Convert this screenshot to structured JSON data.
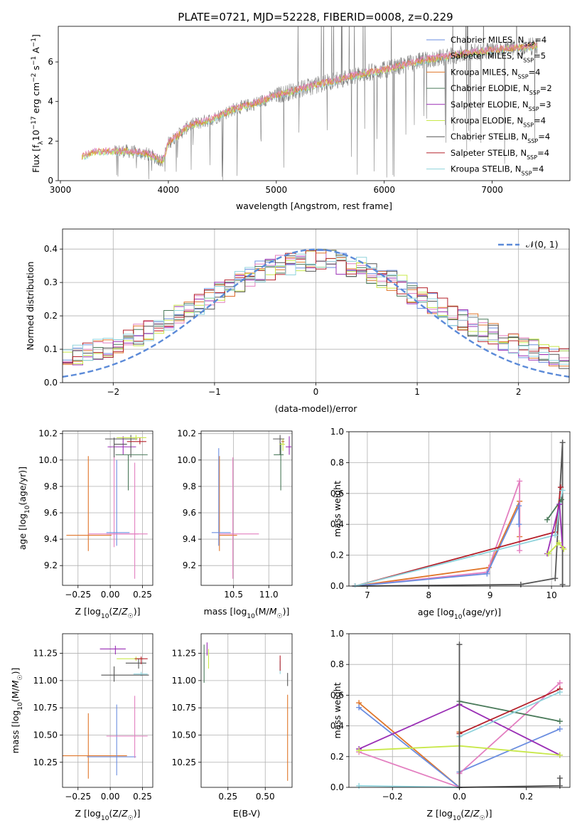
{
  "figure": {
    "title": "PLATE=0721, MJD=52228, FIBERID=0008, z=0.229"
  },
  "colors": {
    "chabrier_miles": "#6a8de0",
    "salpeter_miles": "#e37fc0",
    "kroupa_miles": "#e0762a",
    "chabrier_elodie": "#4a7a5a",
    "salpeter_elodie": "#9a2fb5",
    "kroupa_elodie": "#c8e84a",
    "chabrier_stelib": "#555555",
    "salpeter_stelib": "#b5202a",
    "kroupa_stelib": "#8fd3dc",
    "data_line": "#808080",
    "normal_curve": "#5b8ad8",
    "grid": "#b0b0b0"
  },
  "chart_data": [
    {
      "id": "spectrum",
      "type": "line",
      "xlabel": "wavelength [Angstrom, rest frame]",
      "ylabel": "Flux [f_λ10^-17 erg cm^-2 s^-1 A^-1]",
      "xlim": [
        2980,
        7720
      ],
      "ylim": [
        0,
        7.8
      ],
      "xticks": [
        3000,
        4000,
        5000,
        6000,
        7000
      ],
      "yticks": [
        0,
        2,
        4,
        6
      ],
      "grid": false,
      "legend_position": "upper-right",
      "legend": [
        {
          "base": "Chabrier MILES, N",
          "sub": "SSP",
          "tail": "=4",
          "color": "chabrier_miles"
        },
        {
          "base": "Salpeter MILES, N",
          "sub": "SSP",
          "tail": "=5",
          "color": "salpeter_miles"
        },
        {
          "base": "Kroupa MILES, N",
          "sub": "SSP",
          "tail": "=4",
          "color": "kroupa_miles"
        },
        {
          "base": "Chabrier ELODIE, N",
          "sub": "SSP",
          "tail": "=2",
          "color": "chabrier_elodie"
        },
        {
          "base": "Salpeter ELODIE, N",
          "sub": "SSP",
          "tail": "=3",
          "color": "salpeter_elodie"
        },
        {
          "base": "Kroupa ELODIE, N",
          "sub": "SSP",
          "tail": "=4",
          "color": "kroupa_elodie"
        },
        {
          "base": "Chabrier STELIB, N",
          "sub": "SSP",
          "tail": "=4",
          "color": "chabrier_stelib"
        },
        {
          "base": "Salpeter STELIB, N",
          "sub": "SSP",
          "tail": "=4",
          "color": "salpeter_stelib"
        },
        {
          "base": "Kroupa STELIB, N",
          "sub": "SSP",
          "tail": "=4",
          "color": "kroupa_stelib"
        }
      ],
      "continuum": [
        [
          3200,
          1.2
        ],
        [
          3300,
          1.45
        ],
        [
          3600,
          1.5
        ],
        [
          3800,
          1.35
        ],
        [
          3950,
          1.0
        ],
        [
          4000,
          1.9
        ],
        [
          4200,
          2.8
        ],
        [
          4400,
          3.1
        ],
        [
          4600,
          3.6
        ],
        [
          4800,
          3.9
        ],
        [
          5000,
          4.3
        ],
        [
          5200,
          4.6
        ],
        [
          5500,
          5.0
        ],
        [
          5800,
          5.4
        ],
        [
          6000,
          5.6
        ],
        [
          6300,
          6.0
        ],
        [
          6600,
          6.3
        ],
        [
          7000,
          6.6
        ],
        [
          7400,
          6.8
        ]
      ]
    },
    {
      "id": "residuals",
      "type": "line",
      "xlabel": "(data-model)/error",
      "ylabel": "Normed distribution",
      "xlim": [
        -2.5,
        2.5
      ],
      "ylim": [
        0,
        0.46
      ],
      "xticks": [
        -2,
        -1,
        0,
        1,
        2
      ],
      "yticks": [
        0.0,
        0.1,
        0.2,
        0.3,
        0.4
      ],
      "grid": true,
      "legend_position": "upper-right",
      "legend_label": "𝒩(0, 1)",
      "histogram_bin_width": 0.1,
      "normal_mean": 0,
      "normal_sigma": 1
    },
    {
      "id": "age_vs_Z",
      "type": "scatter",
      "xlabel": "Z [log10(Z/Z☉)]",
      "ylabel": "age  [log10(age/yr)]",
      "xlim": [
        -0.37,
        0.33
      ],
      "ylim": [
        9.05,
        10.22
      ],
      "xticks": [
        -0.25,
        0.0,
        0.25
      ],
      "yticks": [
        9.2,
        9.4,
        9.6,
        9.8,
        10.0,
        10.2
      ],
      "points": [
        {
          "x": -0.17,
          "y": 9.43,
          "xerr": [
            0.17,
            0.18
          ],
          "yerr": [
            0.12,
            0.6
          ],
          "color": "kroupa_miles"
        },
        {
          "x": 0.03,
          "y": 9.44,
          "xerr": [
            0.2,
            0.19
          ],
          "yerr": [
            0.1,
            0.59
          ],
          "color": "salpeter_miles"
        },
        {
          "x": 0.05,
          "y": 9.45,
          "xerr": [
            0.08,
            0.1
          ],
          "yerr": [
            0.1,
            0.55
          ],
          "color": "chabrier_miles"
        },
        {
          "x": 0.19,
          "y": 9.44,
          "xerr": [
            0.22,
            0.1
          ],
          "yerr": [
            0.34,
            0.54
          ],
          "color": "salpeter_miles"
        },
        {
          "x": 0.1,
          "y": 10.1,
          "xerr": [
            0.12,
            0.1
          ],
          "yerr": [
            0.06,
            0.08
          ],
          "color": "salpeter_elodie"
        },
        {
          "x": 0.16,
          "y": 10.16,
          "xerr": [
            0.2,
            0.05
          ],
          "yerr": [
            0.14,
            0.03
          ],
          "color": "chabrier_stelib"
        },
        {
          "x": 0.23,
          "y": 10.14,
          "xerr": [
            0.1,
            0.05
          ],
          "yerr": [
            0.02,
            0.03
          ],
          "color": "salpeter_stelib"
        },
        {
          "x": 0.2,
          "y": 10.17,
          "xerr": [
            0.15,
            0.08
          ],
          "yerr": [
            0.02,
            0.02
          ],
          "color": "kroupa_elodie"
        },
        {
          "x": 0.14,
          "y": 10.04,
          "xerr": [
            0.1,
            0.15
          ],
          "yerr": [
            0.27,
            0.0
          ],
          "color": "chabrier_elodie"
        },
        {
          "x": 0.03,
          "y": 10.12,
          "xerr": [
            0.0,
            0.1
          ],
          "yerr": [
            0.1,
            0.05
          ],
          "color": "chabrier_stelib"
        }
      ]
    },
    {
      "id": "age_vs_mass",
      "type": "scatter",
      "xlabel": "mass [log10(M/M☉)]",
      "ylabel": "",
      "xlim": [
        10.04,
        11.33
      ],
      "ylim": [
        9.05,
        10.22
      ],
      "xticks": [
        10.5,
        11.0
      ],
      "yticks": [
        9.2,
        9.4,
        9.6,
        9.8,
        10.0,
        10.2
      ],
      "points": [
        {
          "x": 10.3,
          "y": 9.43,
          "xerr": [
            0.0,
            0.25
          ],
          "yerr": [
            0.12,
            0.6
          ],
          "color": "kroupa_miles"
        },
        {
          "x": 10.49,
          "y": 9.44,
          "xerr": [
            0.2,
            0.37
          ],
          "yerr": [
            0.34,
            0.58
          ],
          "color": "salpeter_miles"
        },
        {
          "x": 10.29,
          "y": 9.45,
          "xerr": [
            0.1,
            0.17
          ],
          "yerr": [
            0.1,
            0.64
          ],
          "color": "chabrier_miles"
        },
        {
          "x": 11.16,
          "y": 10.16,
          "xerr": [
            0.1,
            0.06
          ],
          "yerr": [
            0.12,
            0.03
          ],
          "color": "chabrier_stelib"
        },
        {
          "x": 11.17,
          "y": 10.04,
          "xerr": [
            0.1,
            0.04
          ],
          "yerr": [
            0.27,
            0.09
          ],
          "color": "chabrier_elodie"
        },
        {
          "x": 11.2,
          "y": 10.14,
          "xerr": [
            0.02,
            0.02
          ],
          "yerr": [
            0.02,
            0.02
          ],
          "color": "salpeter_stelib"
        },
        {
          "x": 11.29,
          "y": 10.1,
          "xerr": [
            0.05,
            0.03
          ],
          "yerr": [
            0.06,
            0.08
          ],
          "color": "salpeter_elodie"
        },
        {
          "x": 11.2,
          "y": 10.12,
          "xerr": [
            0.05,
            0.03
          ],
          "yerr": [
            0.05,
            0.04
          ],
          "color": "kroupa_elodie"
        }
      ]
    },
    {
      "id": "mass_weight_vs_age",
      "type": "line",
      "xlabel": "age  [log10(age/yr)]",
      "ylabel": "mass weight",
      "xlim": [
        6.7,
        10.3
      ],
      "ylim": [
        0,
        1
      ],
      "xticks": [
        7,
        8,
        9,
        10
      ],
      "yticks": [
        0.0,
        0.2,
        0.4,
        0.6,
        0.8,
        1.0
      ],
      "grid": true,
      "series": [
        {
          "color": "kroupa_miles",
          "x": [
            6.8,
            8.98,
            9.48,
            9.48
          ],
          "y": [
            0.0,
            0.12,
            0.55,
            0.32
          ]
        },
        {
          "color": "salpeter_miles",
          "x": [
            6.8,
            8.95,
            9.48,
            9.48
          ],
          "y": [
            0.0,
            0.09,
            0.68,
            0.23
          ]
        },
        {
          "color": "chabrier_miles",
          "x": [
            6.8,
            8.95,
            9.47,
            9.47
          ],
          "y": [
            0.0,
            0.08,
            0.52,
            0.4
          ]
        },
        {
          "color": "chabrier_stelib",
          "x": [
            6.8,
            9.5,
            10.06,
            10.18,
            10.18
          ],
          "y": [
            0.0,
            0.01,
            0.05,
            0.93,
            0.01
          ]
        },
        {
          "color": "salpeter_stelib",
          "x": [
            6.8,
            10.06,
            10.15
          ],
          "y": [
            0.0,
            0.35,
            0.64
          ]
        },
        {
          "color": "kroupa_stelib",
          "x": [
            6.8,
            10.06,
            10.18
          ],
          "y": [
            0.0,
            0.33,
            0.62
          ]
        },
        {
          "color": "chabrier_elodie",
          "x": [
            9.93,
            10.16
          ],
          "y": [
            0.43,
            0.56
          ]
        },
        {
          "color": "salpeter_elodie",
          "x": [
            9.93,
            10.13,
            10.18
          ],
          "y": [
            0.21,
            0.53,
            0.25
          ]
        },
        {
          "color": "kroupa_elodie",
          "x": [
            9.95,
            10.12,
            10.2
          ],
          "y": [
            0.21,
            0.28,
            0.24
          ]
        }
      ]
    },
    {
      "id": "mass_vs_Z",
      "type": "scatter",
      "xlabel": "Z [log10(Z/Z☉)]",
      "ylabel": "mass [log10(M/M☉)]",
      "xlim": [
        -0.37,
        0.33
      ],
      "ylim": [
        10.02,
        11.43
      ],
      "xticks": [
        -0.25,
        0.0,
        0.25
      ],
      "yticks": [
        10.25,
        10.5,
        10.75,
        11.0,
        11.25
      ],
      "points": [
        {
          "x": -0.17,
          "y": 10.31,
          "xerr": [
            0.2,
            0.3
          ],
          "yerr": [
            0.21,
            0.39
          ],
          "color": "kroupa_miles"
        },
        {
          "x": -0.15,
          "y": 10.3,
          "xerr": [
            0.03,
            0.35
          ],
          "yerr": [
            0.0,
            0.0
          ],
          "color": "chabrier_miles"
        },
        {
          "x": 0.05,
          "y": 10.3,
          "xerr": [
            0.0,
            0.0
          ],
          "yerr": [
            0.17,
            0.48
          ],
          "color": "chabrier_miles"
        },
        {
          "x": 0.19,
          "y": 10.49,
          "xerr": [
            0.22,
            0.1
          ],
          "yerr": [
            0.2,
            0.37
          ],
          "color": "salpeter_miles"
        },
        {
          "x": 0.04,
          "y": 11.29,
          "xerr": [
            0.12,
            0.08
          ],
          "yerr": [
            0.05,
            0.03
          ],
          "color": "salpeter_elodie"
        },
        {
          "x": 0.2,
          "y": 11.2,
          "xerr": [
            0.15,
            0.05
          ],
          "yerr": [
            0.02,
            0.02
          ],
          "color": "kroupa_elodie"
        },
        {
          "x": 0.22,
          "y": 11.16,
          "xerr": [
            0.1,
            0.06
          ],
          "yerr": [
            0.05,
            0.04
          ],
          "color": "chabrier_stelib"
        },
        {
          "x": 0.24,
          "y": 11.2,
          "xerr": [
            0.05,
            0.05
          ],
          "yerr": [
            0.05,
            0.02
          ],
          "color": "salpeter_stelib"
        },
        {
          "x": 0.24,
          "y": 11.06,
          "xerr": [
            0.06,
            0.05
          ],
          "yerr": [
            0.02,
            0.02
          ],
          "color": "kroupa_stelib"
        },
        {
          "x": 0.03,
          "y": 11.05,
          "xerr": [
            0.1,
            0.27
          ],
          "yerr": [
            0.06,
            0.08
          ],
          "color": "chabrier_stelib"
        }
      ]
    },
    {
      "id": "mass_vs_ebv",
      "type": "scatter",
      "xlabel": "E(B-V)",
      "ylabel": "",
      "xlim": [
        0.07,
        0.68
      ],
      "ylim": [
        10.02,
        11.43
      ],
      "xticks": [
        0.25,
        0.5
      ],
      "yticks": [
        10.25,
        10.5,
        10.75,
        11.0,
        11.25
      ],
      "points": [
        {
          "x": 0.09,
          "y": 11.16,
          "xerr": [
            0.0,
            0.0
          ],
          "yerr": [
            0.18,
            0.17
          ],
          "color": "chabrier_elodie"
        },
        {
          "x": 0.11,
          "y": 11.29,
          "xerr": [
            0.0,
            0.0
          ],
          "yerr": [
            0.06,
            0.06
          ],
          "color": "salpeter_elodie"
        },
        {
          "x": 0.12,
          "y": 11.21,
          "xerr": [
            0.0,
            0.0
          ],
          "yerr": [
            0.1,
            0.08
          ],
          "color": "kroupa_elodie"
        },
        {
          "x": 0.6,
          "y": 11.1,
          "xerr": [
            0.0,
            0.0
          ],
          "yerr": [
            0.04,
            0.08
          ],
          "color": "kroupa_stelib"
        },
        {
          "x": 0.6,
          "y": 11.16,
          "xerr": [
            0.0,
            0.0
          ],
          "yerr": [
            0.07,
            0.07
          ],
          "color": "salpeter_stelib"
        },
        {
          "x": 0.65,
          "y": 11.0,
          "xerr": [
            0.0,
            0.0
          ],
          "yerr": [
            0.05,
            0.07
          ],
          "color": "chabrier_stelib"
        },
        {
          "x": 0.65,
          "y": 10.7,
          "xerr": [
            0.0,
            0.0
          ],
          "yerr": [
            0.62,
            0.17
          ],
          "color": "kroupa_miles"
        }
      ]
    },
    {
      "id": "mass_weight_vs_Z",
      "type": "line",
      "xlabel": "Z [log10(Z/Z☉)]",
      "ylabel": "mass weight",
      "xlim": [
        -0.33,
        0.33
      ],
      "ylim": [
        0,
        1
      ],
      "xticks": [
        -0.2,
        0.0,
        0.2
      ],
      "yticks": [
        0.0,
        0.2,
        0.4,
        0.6,
        0.8,
        1.0
      ],
      "grid": true,
      "series": [
        {
          "color": "kroupa_miles",
          "x": [
            -0.3,
            0.0,
            0.0
          ],
          "y": [
            0.55,
            0.0,
            0.36
          ]
        },
        {
          "color": "chabrier_miles",
          "x": [
            -0.3,
            0.0,
            0.0,
            0.3
          ],
          "y": [
            0.52,
            0.0,
            0.1,
            0.38
          ]
        },
        {
          "color": "salpeter_miles",
          "x": [
            -0.3,
            0.0,
            0.0,
            0.3
          ],
          "y": [
            0.23,
            0.0,
            0.09,
            0.68
          ]
        },
        {
          "color": "salpeter_elodie",
          "x": [
            -0.3,
            0.0,
            0.3
          ],
          "y": [
            0.25,
            0.54,
            0.21
          ]
        },
        {
          "color": "kroupa_elodie",
          "x": [
            -0.3,
            0.0,
            0.3
          ],
          "y": [
            0.24,
            0.27,
            0.21
          ]
        },
        {
          "color": "chabrier_elodie",
          "x": [
            0.0,
            0.3
          ],
          "y": [
            0.56,
            0.43
          ]
        },
        {
          "color": "salpeter_stelib",
          "x": [
            0.0,
            0.3
          ],
          "y": [
            0.35,
            0.64
          ]
        },
        {
          "color": "kroupa_stelib",
          "x": [
            -0.3,
            0.0,
            0.0,
            0.3
          ],
          "y": [
            0.01,
            0.0,
            0.33,
            0.62
          ]
        },
        {
          "color": "chabrier_stelib",
          "x": [
            0.0,
            0.0,
            0.3,
            0.3
          ],
          "y": [
            0.93,
            0.0,
            0.01,
            0.06
          ]
        }
      ]
    }
  ]
}
